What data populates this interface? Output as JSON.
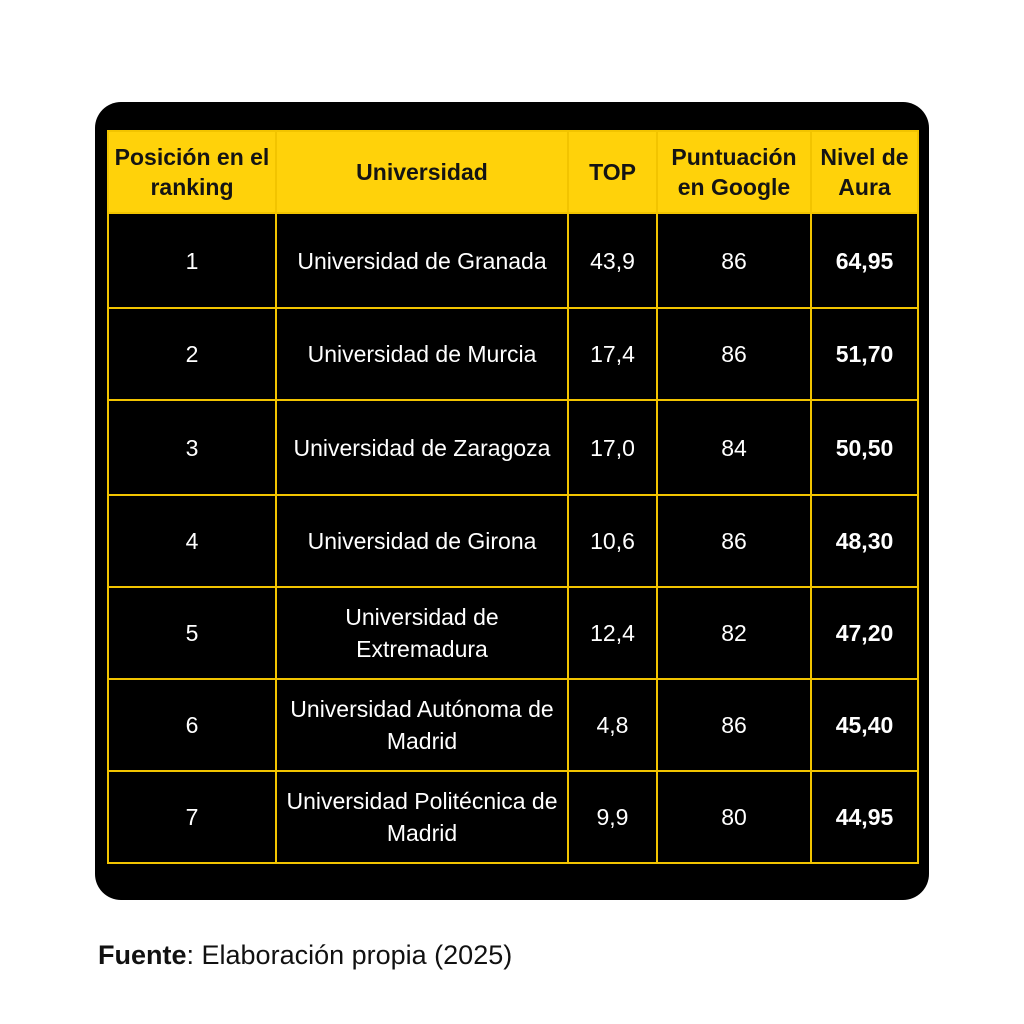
{
  "table": {
    "headers": {
      "posicion": "Posición en el ranking",
      "universidad": "Universidad",
      "top": "TOP",
      "google": "Puntuación en Google",
      "aura": "Nivel de Aura"
    },
    "rows": [
      {
        "posicion": "1",
        "universidad": "Universidad de Granada",
        "top": "43,9",
        "google": "86",
        "aura": "64,95"
      },
      {
        "posicion": "2",
        "universidad": "Universidad de Murcia",
        "top": "17,4",
        "google": "86",
        "aura": "51,70"
      },
      {
        "posicion": "3",
        "universidad": "Universidad de Zaragoza",
        "top": "17,0",
        "google": "84",
        "aura": "50,50"
      },
      {
        "posicion": "4",
        "universidad": "Universidad de Girona",
        "top": "10,6",
        "google": "86",
        "aura": "48,30"
      },
      {
        "posicion": "5",
        "universidad": "Universidad de Extremadura",
        "top": "12,4",
        "google": "82",
        "aura": "47,20"
      },
      {
        "posicion": "6",
        "universidad": "Universidad Autónoma de Madrid",
        "top": "4,8",
        "google": "86",
        "aura": "45,40"
      },
      {
        "posicion": "7",
        "universidad": "Universidad Politécnica de Madrid",
        "top": "9,9",
        "google": "80",
        "aura": "44,95"
      }
    ]
  },
  "source": {
    "label": "Fuente",
    "text": ": Elaboración propia (2025)"
  },
  "colors": {
    "header_background": "#ffd20a",
    "card_background": "#000000",
    "grid_lines": "#f2c400",
    "cell_text": "#ffffff"
  },
  "chart_data": {
    "type": "table",
    "columns": [
      "Posición en el ranking",
      "Universidad",
      "TOP",
      "Puntuación en Google",
      "Nivel de Aura"
    ],
    "rows": [
      [
        1,
        "Universidad de Granada",
        43.9,
        86,
        64.95
      ],
      [
        2,
        "Universidad de Murcia",
        17.4,
        86,
        51.7
      ],
      [
        3,
        "Universidad de Zaragoza",
        17.0,
        84,
        50.5
      ],
      [
        4,
        "Universidad de Girona",
        10.6,
        86,
        48.3
      ],
      [
        5,
        "Universidad de Extremadura",
        12.4,
        82,
        47.2
      ],
      [
        6,
        "Universidad Autónoma de Madrid",
        4.8,
        86,
        45.4
      ],
      [
        7,
        "Universidad Politécnica de Madrid",
        9.9,
        80,
        44.95
      ]
    ]
  }
}
